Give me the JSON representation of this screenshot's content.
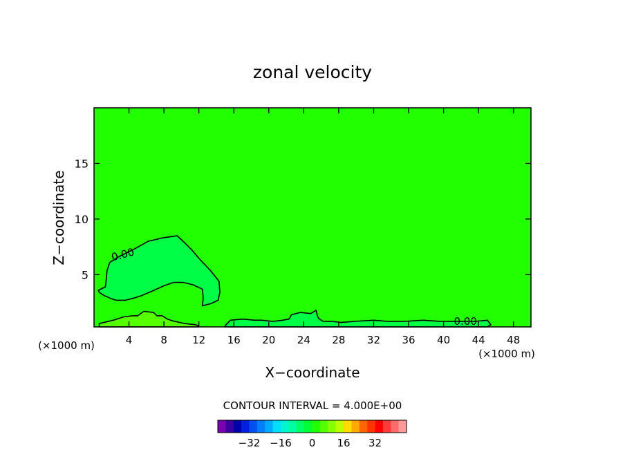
{
  "chart_data": {
    "type": "contour",
    "title": "zonal velocity",
    "xlabel": "X−coordinate",
    "ylabel": "Z−coordinate",
    "x_unit_label": "(×1000 m)",
    "y_unit_label": "(×1000 m)",
    "xlim": [
      0,
      50
    ],
    "ylim": [
      0.3,
      20
    ],
    "x_ticks": [
      4,
      8,
      12,
      16,
      20,
      24,
      28,
      32,
      36,
      40,
      44,
      48
    ],
    "y_ticks": [
      5,
      10,
      15
    ],
    "grid": false,
    "contour_label_text": "0.00",
    "contour_labels": [
      {
        "text": "0.00",
        "x": 3.4,
        "z": 6.5
      },
      {
        "text": "0.00",
        "x": 42.5,
        "z": 0.5
      }
    ],
    "background_level_color": "#22ff00",
    "regions": [
      {
        "name": "upper-left negative lobe",
        "color": "#00ff44",
        "outline": [
          [
            0.5,
            3.6
          ],
          [
            1.3,
            3.9
          ],
          [
            1.4,
            4.6
          ],
          [
            1.5,
            5.4
          ],
          [
            1.8,
            6.1
          ],
          [
            2.8,
            6.6
          ],
          [
            4.6,
            7.3
          ],
          [
            6.2,
            8.0
          ],
          [
            7.8,
            8.3
          ],
          [
            9.5,
            8.5
          ],
          [
            10.2,
            8.0
          ],
          [
            11.1,
            7.3
          ],
          [
            12.2,
            6.3
          ],
          [
            13.4,
            5.3
          ],
          [
            14.3,
            4.4
          ],
          [
            14.4,
            3.4
          ],
          [
            14.2,
            2.7
          ],
          [
            13.4,
            2.4
          ],
          [
            12.4,
            2.2
          ],
          [
            12.5,
            2.9
          ],
          [
            12.4,
            3.7
          ],
          [
            11.3,
            4.1
          ],
          [
            10.2,
            4.3
          ],
          [
            9.1,
            4.3
          ],
          [
            8.0,
            4.0
          ],
          [
            6.6,
            3.5
          ],
          [
            5.4,
            3.1
          ],
          [
            4.6,
            2.9
          ],
          [
            3.6,
            2.7
          ],
          [
            2.5,
            2.7
          ],
          [
            1.8,
            2.9
          ],
          [
            1.2,
            3.1
          ],
          [
            0.6,
            3.4
          ]
        ]
      },
      {
        "name": "lower-left positive patch",
        "color": "#55ff00",
        "outline": [
          [
            0.6,
            0.6
          ],
          [
            2.2,
            0.9
          ],
          [
            3.4,
            1.2
          ],
          [
            4.4,
            1.3
          ],
          [
            5.0,
            1.3
          ],
          [
            5.7,
            1.7
          ],
          [
            6.8,
            1.6
          ],
          [
            7.2,
            1.3
          ],
          [
            7.8,
            1.3
          ],
          [
            8.4,
            1.0
          ],
          [
            9.2,
            0.8
          ],
          [
            10.4,
            0.6
          ],
          [
            11.6,
            0.5
          ],
          [
            12.0,
            0.4
          ],
          [
            11.8,
            0.3
          ],
          [
            0.6,
            0.3
          ]
        ]
      },
      {
        "name": "near-surface negative band",
        "color": "#00ff44",
        "outline": [
          [
            15.0,
            0.4
          ],
          [
            15.6,
            0.9
          ],
          [
            17.0,
            1.0
          ],
          [
            18.4,
            0.9
          ],
          [
            19.2,
            0.9
          ],
          [
            20.5,
            0.8
          ],
          [
            21.6,
            0.9
          ],
          [
            22.3,
            1.0
          ],
          [
            22.6,
            1.4
          ],
          [
            23.6,
            1.6
          ],
          [
            24.8,
            1.5
          ],
          [
            25.4,
            1.8
          ],
          [
            25.6,
            1.2
          ],
          [
            25.8,
            1.0
          ],
          [
            26.2,
            0.8
          ],
          [
            27.3,
            0.8
          ],
          [
            28.2,
            0.7
          ],
          [
            29.8,
            0.8
          ],
          [
            32.0,
            0.9
          ],
          [
            33.6,
            0.8
          ],
          [
            35.5,
            0.8
          ],
          [
            37.6,
            0.9
          ],
          [
            39.6,
            0.8
          ],
          [
            41.6,
            0.8
          ],
          [
            43.6,
            0.8
          ],
          [
            45.0,
            0.9
          ],
          [
            45.4,
            0.5
          ],
          [
            45.0,
            0.3
          ],
          [
            15.0,
            0.3
          ]
        ]
      }
    ],
    "contour_interval": "CONTOUR INTERVAL = 4.000E+00",
    "colorbar": {
      "colors": [
        "#7a00b0",
        "#3a009f",
        "#0000aa",
        "#0020e0",
        "#0050f0",
        "#0080ff",
        "#00aaff",
        "#00ddff",
        "#00f5d0",
        "#00ffa0",
        "#00ff66",
        "#00ff33",
        "#22ff00",
        "#55ff00",
        "#88ff00",
        "#bbff00",
        "#ffdd00",
        "#ffaa00",
        "#ff6600",
        "#ff3300",
        "#ff0000",
        "#ff3a3a",
        "#ff6a6a",
        "#ff9a9a"
      ],
      "tick_labels": [
        "−32",
        "−16",
        "0",
        "16",
        "32"
      ],
      "tick_values": [
        -32,
        -16,
        0,
        16,
        32
      ],
      "range": [
        -48,
        48
      ]
    }
  }
}
